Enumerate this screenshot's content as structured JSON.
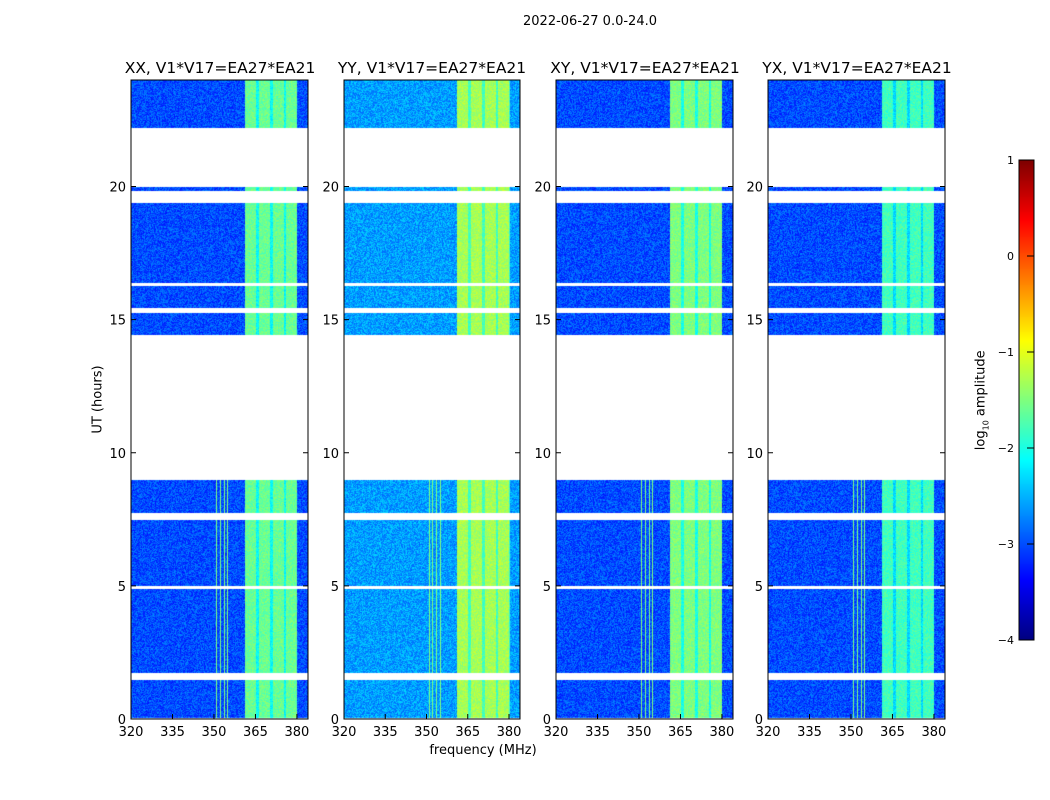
{
  "chart_data": {
    "type": "heatmap",
    "title": "2022-06-27 0.0-24.0",
    "xlabel": "frequency (MHz)",
    "ylabel": "UT (hours)",
    "xlim": [
      320,
      384
    ],
    "ylim": [
      0,
      24
    ],
    "xticks": [
      "320",
      "335",
      "350",
      "365",
      "380"
    ],
    "xtick_values": [
      320,
      335,
      350,
      365,
      380
    ],
    "yticks": [
      "0",
      "5",
      "10",
      "15",
      "20"
    ],
    "ytick_values": [
      0,
      5,
      10,
      15,
      20
    ],
    "panels": [
      {
        "title": "XX, V1*V17=EA27*EA21",
        "background_level": -3.0,
        "band_level": -1.6
      },
      {
        "title": "YY, V1*V17=EA27*EA21",
        "background_level": -2.6,
        "band_level": -1.3
      },
      {
        "title": "XY, V1*V17=EA27*EA21",
        "background_level": -3.0,
        "band_level": -1.5
      },
      {
        "title": "YX, V1*V17=EA27*EA21",
        "background_level": -3.0,
        "band_level": -1.8
      }
    ],
    "band_mhz": [
      361,
      380
    ],
    "data_time_blocks_hours": [
      [
        0.05,
        1.5
      ],
      [
        1.75,
        4.9
      ],
      [
        5.0,
        7.5
      ],
      [
        7.75,
        9.0
      ],
      [
        14.45,
        15.25
      ],
      [
        15.45,
        16.3
      ],
      [
        16.4,
        19.4
      ],
      [
        19.85,
        20.0
      ],
      [
        22.2,
        24.0
      ]
    ],
    "colorbar": {
      "label": "log10 amplitude",
      "label_main": "log",
      "label_sub": "10",
      "label_rest": " amplitude",
      "range": [
        -4,
        1
      ],
      "ticks": [
        "1",
        "0",
        "−1",
        "−2",
        "−3",
        "−4"
      ],
      "tick_values": [
        1,
        0,
        -1,
        -2,
        -3,
        -4
      ],
      "colormap": "jet"
    }
  }
}
